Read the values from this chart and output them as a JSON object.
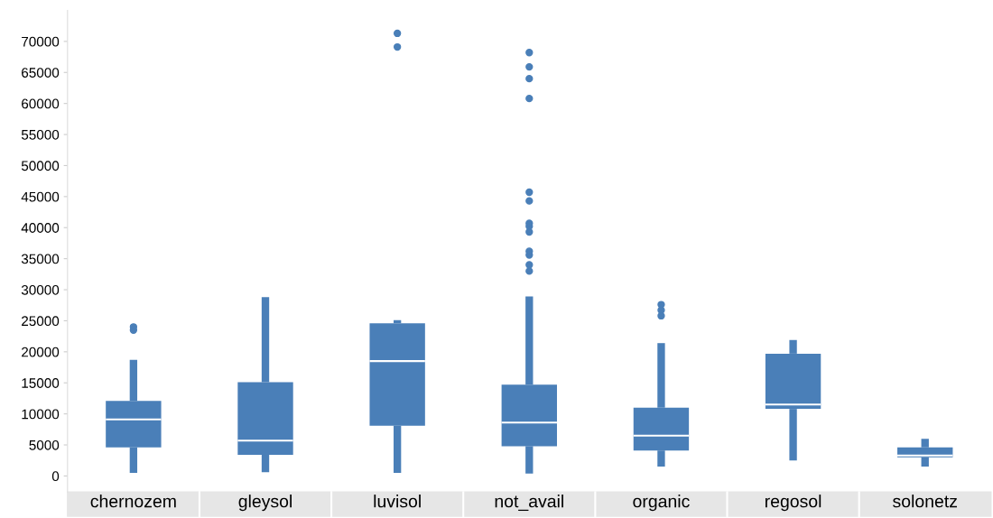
{
  "chart_data": {
    "type": "box",
    "categories": [
      "chernozem",
      "gleysol",
      "luvisol",
      "not_avail",
      "organic",
      "regosol",
      "solonetz"
    ],
    "color": "#4a7fb8",
    "boxes": [
      {
        "low": 500,
        "q1": 4600,
        "median": 9100,
        "q3": 12100,
        "high": 18700,
        "outliers": [
          23500,
          24000
        ]
      },
      {
        "low": 600,
        "q1": 3400,
        "median": 5700,
        "q3": 15100,
        "high": 28800
      },
      {
        "low": 500,
        "q1": 8100,
        "median": 18500,
        "q3": 24600,
        "high": 25100,
        "outliers": [
          69100,
          71300
        ]
      },
      {
        "low": 400,
        "q1": 4800,
        "median": 8600,
        "q3": 14700,
        "high": 28900,
        "outliers": [
          33000,
          34000,
          35600,
          36200,
          39300,
          40200,
          40700,
          44300,
          45700,
          60800,
          64000,
          65900,
          68200
        ]
      },
      {
        "low": 1500,
        "q1": 4100,
        "median": 6500,
        "q3": 11000,
        "high": 21400,
        "outliers": [
          25800,
          26700,
          27600
        ]
      },
      {
        "low": 2500,
        "q1": 10800,
        "median": 11500,
        "q3": 19700,
        "high": 21900
      },
      {
        "low": 1500,
        "q1": 3000,
        "median": 3300,
        "q3": 4600,
        "high": 6000
      }
    ],
    "ylim": [
      -2600,
      75000
    ],
    "yticks": [
      0,
      5000,
      10000,
      15000,
      20000,
      25000,
      30000,
      35000,
      40000,
      45000,
      50000,
      55000,
      60000,
      65000,
      70000
    ],
    "grid": false,
    "marker": "circle"
  }
}
